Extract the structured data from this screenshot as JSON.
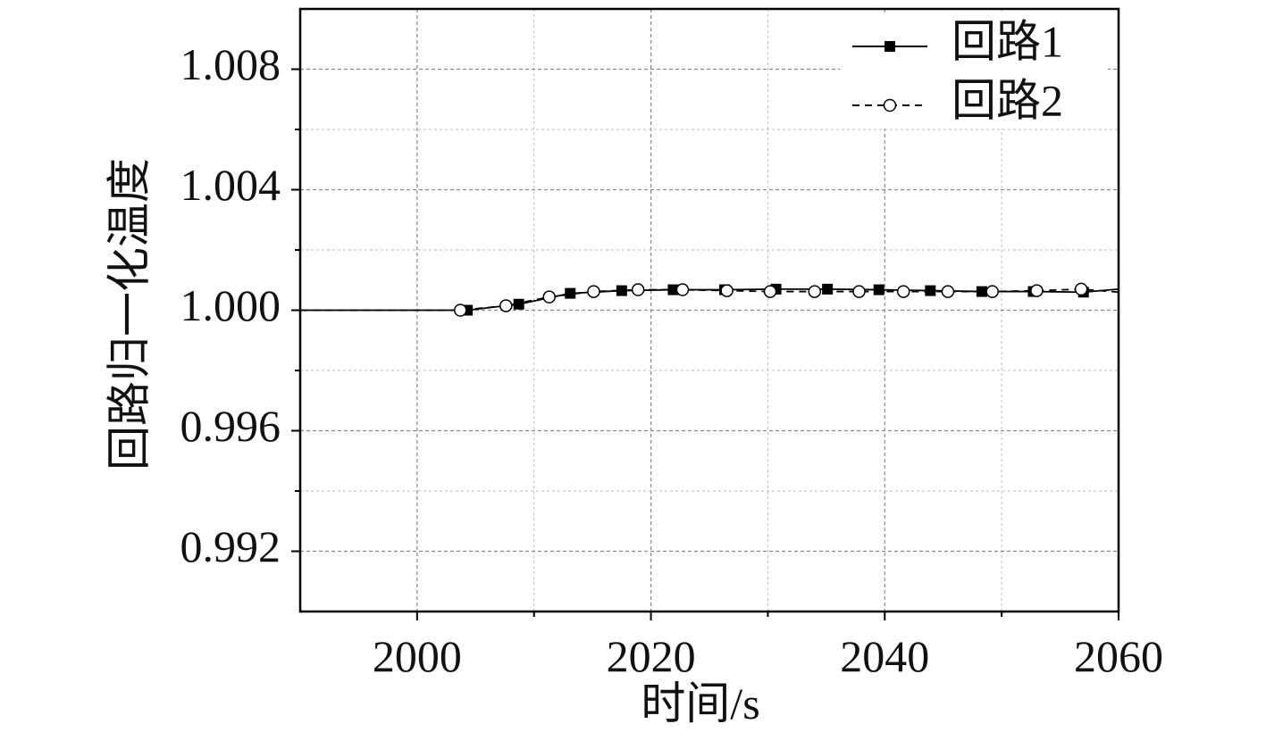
{
  "chart_data": {
    "type": "line",
    "xlabel": "时间/s",
    "ylabel": "回路归一化温度",
    "xlim": [
      1990,
      2060
    ],
    "ylim": [
      0.99,
      1.01
    ],
    "xticks": [
      2000,
      2020,
      2040,
      2060
    ],
    "yticks": [
      0.992,
      0.996,
      {
        "value": 1.0,
        "label": "1.000"
      },
      1.004,
      1.008
    ],
    "xminorticks": [
      2010,
      2030,
      2050
    ],
    "yminorticks": [
      0.994,
      0.998,
      1.002,
      1.006
    ],
    "grid": true,
    "legend": "upper right",
    "series": [
      {
        "name": "回路1",
        "color": "#000000",
        "linestyle": "solid",
        "marker": "square",
        "x": [
          1990,
          2004.3,
          2008.7,
          2013.1,
          2017.5,
          2021.9,
          2026.3,
          2030.7,
          2035.1,
          2039.5,
          2043.9,
          2048.3,
          2052.7,
          2057.0,
          2060
        ],
        "values": [
          1.0,
          1.0,
          1.0002,
          1.00056,
          1.00065,
          1.00068,
          1.00068,
          1.0007,
          1.0007,
          1.00068,
          1.00065,
          1.00062,
          1.00062,
          1.0006,
          1.0007
        ]
      },
      {
        "name": "回路2",
        "color": "#000000",
        "linestyle": "dashed",
        "marker": "circle",
        "x": [
          1990,
          2003.7,
          2007.6,
          2011.3,
          2015.1,
          2018.9,
          2022.7,
          2026.5,
          2030.2,
          2034.0,
          2037.8,
          2041.6,
          2045.4,
          2049.2,
          2053.0,
          2056.8,
          2060
        ],
        "values": [
          1.0,
          1.0,
          1.00015,
          1.00044,
          1.00062,
          1.00068,
          1.00068,
          1.00065,
          1.00062,
          1.00062,
          1.00062,
          1.00062,
          1.00062,
          1.00062,
          1.00065,
          1.0007,
          1.0006
        ]
      }
    ]
  }
}
